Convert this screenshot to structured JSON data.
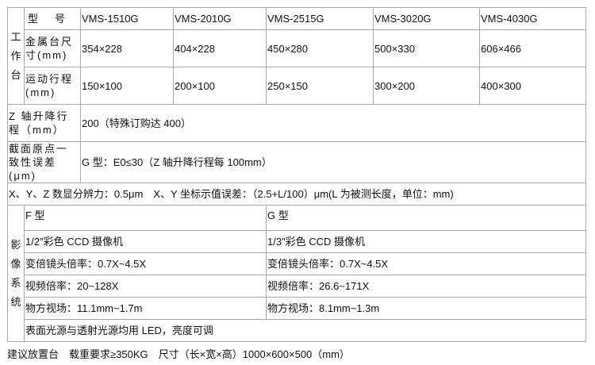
{
  "workbench": {
    "section_label": "工作台",
    "model_label": "型　号",
    "models": [
      "VMS-1510G",
      "VMS-2010G",
      "VMS-2515G",
      "VMS-3020G",
      "VMS-4030G"
    ],
    "metal_table_label": "金属台尺寸(mm)",
    "metal_table": [
      "354×228",
      "404×228",
      "450×280",
      "500×330",
      "606×466"
    ],
    "travel_label": "运动行程(mm)",
    "travel": [
      "150×100",
      "200×100",
      "250×150",
      "300×200",
      "400×300"
    ]
  },
  "z_travel": {
    "label": "Z 轴升降行程（mm）",
    "value": "200（特殊订购达 400）"
  },
  "origin_error": {
    "label": "截面原点一致性误差(μm)",
    "value": "G 型：E0≤30（Z 轴升降行程每 100mm）"
  },
  "resolution_row": "X、Y、Z 数显分辨力：0.5μm　X、Y 坐标示值误差：（2.5+L/100）μm(L 为被测长度，单位：mm)",
  "imaging": {
    "section_label": "影像系统",
    "f": {
      "type": "F 型",
      "camera": "1/2″彩色 CCD 摄像机",
      "zoom": "变倍镜头倍率：0.7X~4.5X",
      "video": "视频倍率：20~128X",
      "fov": "物方视场：11.1mm~1.7m"
    },
    "g": {
      "type": "G 型",
      "camera": "1/3″彩色 CCD 摄像机",
      "zoom": "变倍镜头倍率：0.7X~4.5X",
      "video": "视频倍率：26.6~171X",
      "fov": "物方视场：8.1mm~1.3m"
    },
    "light": "表面光源与透射光源均用 LED，亮度可调"
  },
  "footer": "建议放置台　载重要求≥350KG　尺寸（长×宽×高）1000×600×500（mm）"
}
